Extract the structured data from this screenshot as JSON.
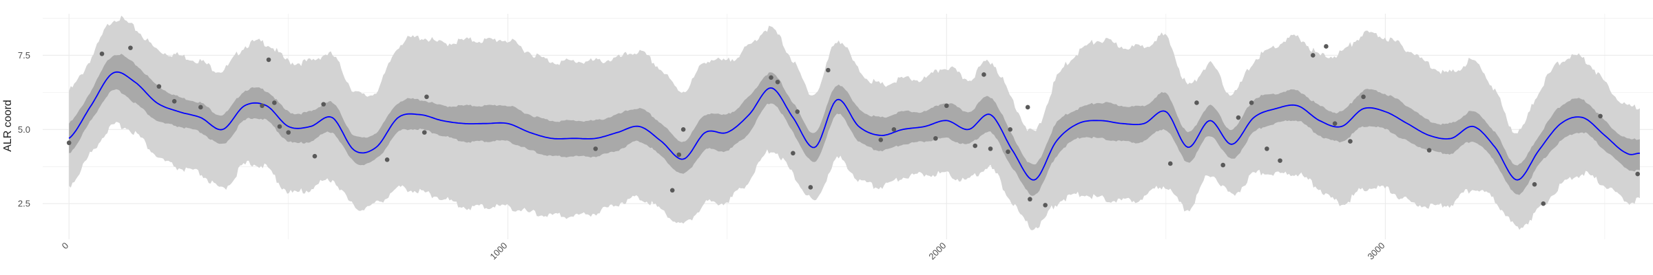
{
  "chart_data": {
    "type": "line",
    "title": "",
    "xlabel": "",
    "ylabel": "ALR coord",
    "xlim": [
      -60,
      3610
    ],
    "ylim": [
      1.3,
      8.9
    ],
    "x_ticks": [
      0,
      1000,
      2000,
      3000
    ],
    "x_tick_labels": [
      "0",
      "1000",
      "2000",
      "3000"
    ],
    "y_ticks": [
      2.5,
      5.0,
      7.5
    ],
    "y_tick_labels": [
      "2.5",
      "5.0",
      "7.5"
    ],
    "grid": true,
    "legend": "none",
    "colors": {
      "mean_line": "#0000ff",
      "outer_band": "#d3d3d3",
      "inner_band": "#a9a9a9",
      "points": "#595959",
      "grid": "#ebebeb"
    },
    "mean": {
      "x": [
        0,
        50,
        100,
        150,
        200,
        250,
        300,
        350,
        400,
        450,
        500,
        550,
        600,
        650,
        700,
        750,
        800,
        850,
        900,
        950,
        1000,
        1050,
        1100,
        1150,
        1200,
        1250,
        1300,
        1350,
        1400,
        1450,
        1500,
        1550,
        1600,
        1650,
        1700,
        1750,
        1800,
        1850,
        1900,
        1950,
        2000,
        2050,
        2100,
        2150,
        2200,
        2250,
        2300,
        2350,
        2400,
        2450,
        2500,
        2550,
        2600,
        2650,
        2700,
        2750,
        2800,
        2850,
        2900,
        2950,
        3000,
        3050,
        3100,
        3150,
        3200,
        3250,
        3300,
        3350,
        3400,
        3450,
        3500,
        3550,
        3580
      ],
      "y": [
        4.7,
        5.8,
        6.9,
        6.6,
        5.9,
        5.6,
        5.4,
        5.0,
        5.8,
        5.8,
        5.1,
        5.1,
        5.4,
        4.3,
        4.4,
        5.4,
        5.5,
        5.3,
        5.2,
        5.2,
        5.2,
        4.9,
        4.7,
        4.7,
        4.7,
        4.9,
        5.1,
        4.6,
        4.0,
        4.9,
        4.9,
        5.5,
        6.4,
        5.4,
        4.4,
        6.0,
        5.1,
        4.8,
        5.0,
        5.1,
        5.3,
        5.0,
        5.5,
        4.3,
        3.3,
        4.6,
        5.2,
        5.3,
        5.2,
        5.2,
        5.6,
        4.4,
        5.3,
        4.5,
        5.4,
        5.7,
        5.8,
        5.3,
        5.1,
        5.7,
        5.6,
        5.2,
        4.8,
        4.7,
        5.1,
        4.4,
        3.3,
        4.3,
        5.2,
        5.4,
        4.8,
        4.2,
        4.2
      ]
    },
    "inner_band": {
      "lower": [
        4.2,
        5.3,
        6.3,
        5.9,
        5.3,
        5.1,
        4.9,
        4.5,
        5.3,
        5.3,
        4.6,
        4.6,
        4.9,
        3.9,
        4.0,
        4.9,
        5.0,
        4.8,
        4.6,
        4.6,
        4.6,
        4.3,
        4.1,
        4.1,
        4.1,
        4.3,
        4.6,
        4.1,
        3.5,
        4.3,
        4.3,
        4.9,
        5.9,
        4.9,
        3.9,
        5.5,
        4.6,
        4.3,
        4.5,
        4.6,
        4.7,
        4.5,
        4.9,
        3.7,
        2.8,
        4.1,
        4.7,
        4.7,
        4.6,
        4.6,
        5.0,
        3.9,
        4.8,
        4.0,
        4.9,
        5.2,
        5.3,
        4.8,
        4.6,
        5.1,
        5.0,
        4.6,
        4.3,
        4.2,
        4.6,
        3.9,
        2.8,
        3.8,
        4.6,
        4.9,
        4.3,
        3.7,
        3.6
      ],
      "upper": [
        5.2,
        6.3,
        7.5,
        7.2,
        6.5,
        6.1,
        5.9,
        5.5,
        6.3,
        6.3,
        5.6,
        5.6,
        5.9,
        4.8,
        4.9,
        5.9,
        6.0,
        5.8,
        5.8,
        5.8,
        5.8,
        5.5,
        5.3,
        5.3,
        5.3,
        5.5,
        5.7,
        5.2,
        4.6,
        5.5,
        5.5,
        6.1,
        6.9,
        5.9,
        4.9,
        6.5,
        5.7,
        5.4,
        5.6,
        5.6,
        5.9,
        5.6,
        6.1,
        4.8,
        3.8,
        5.2,
        5.7,
        5.9,
        5.8,
        5.8,
        6.2,
        4.9,
        5.8,
        5.0,
        6.0,
        6.2,
        6.3,
        5.8,
        5.6,
        6.3,
        6.2,
        5.8,
        5.3,
        5.2,
        5.6,
        4.9,
        3.8,
        4.8,
        5.8,
        6.0,
        5.3,
        4.7,
        4.7
      ]
    },
    "outer_band": {
      "lower": [
        3.1,
        4.2,
        5.1,
        4.9,
        4.1,
        3.7,
        3.5,
        3.0,
        3.8,
        3.7,
        2.9,
        3.0,
        3.3,
        2.4,
        2.5,
        3.0,
        2.9,
        2.7,
        2.4,
        2.4,
        2.4,
        2.2,
        2.1,
        2.1,
        2.2,
        2.5,
        2.7,
        2.3,
        1.8,
        2.5,
        2.6,
        3.3,
        4.3,
        3.5,
        2.6,
        4.0,
        3.3,
        3.1,
        3.4,
        3.5,
        3.5,
        3.3,
        3.7,
        2.5,
        1.7,
        2.5,
        2.8,
        2.7,
        2.6,
        2.7,
        3.1,
        2.3,
        3.5,
        2.8,
        3.5,
        3.5,
        3.5,
        3.0,
        2.5,
        3.0,
        3.0,
        2.6,
        2.4,
        2.5,
        3.0,
        2.6,
        1.7,
        2.3,
        3.1,
        3.5,
        3.1,
        2.6,
        2.6
      ],
      "upper": [
        6.3,
        7.4,
        8.7,
        8.4,
        7.7,
        7.5,
        7.3,
        7.0,
        7.8,
        7.9,
        7.3,
        7.3,
        7.5,
        6.3,
        6.3,
        7.8,
        8.1,
        7.9,
        8.0,
        8.0,
        8.0,
        7.6,
        7.3,
        7.3,
        7.3,
        7.4,
        7.6,
        7.0,
        6.3,
        7.3,
        7.3,
        7.8,
        8.4,
        7.3,
        6.2,
        8.0,
        7.0,
        6.5,
        6.7,
        6.7,
        7.1,
        6.7,
        7.3,
        6.0,
        4.9,
        6.7,
        7.6,
        8.0,
        7.8,
        7.8,
        8.1,
        6.5,
        7.2,
        6.2,
        7.3,
        7.8,
        8.1,
        7.5,
        7.6,
        8.2,
        8.1,
        7.7,
        7.2,
        6.9,
        7.3,
        6.3,
        4.9,
        6.3,
        7.3,
        7.4,
        6.6,
        5.8,
        5.8
      ]
    },
    "points": {
      "x": [
        0,
        75,
        140,
        205,
        240,
        300,
        440,
        455,
        468,
        480,
        500,
        560,
        580,
        725,
        810,
        815,
        1200,
        1375,
        1390,
        1400,
        1600,
        1615,
        1650,
        1660,
        1690,
        1730,
        1850,
        1880,
        1975,
        2000,
        2065,
        2085,
        2100,
        2140,
        2145,
        2185,
        2190,
        2225,
        2510,
        2570,
        2630,
        2665,
        2695,
        2730,
        2760,
        2835,
        2865,
        2885,
        2920,
        2950,
        3100,
        3340,
        3360,
        3490,
        3575
      ],
      "y": [
        4.55,
        7.55,
        7.75,
        6.45,
        5.95,
        5.75,
        5.8,
        7.35,
        5.9,
        5.1,
        4.9,
        4.1,
        5.85,
        3.98,
        4.9,
        6.1,
        4.35,
        2.95,
        4.15,
        5.0,
        6.75,
        6.6,
        4.2,
        5.6,
        3.05,
        7.0,
        4.65,
        5.0,
        4.7,
        5.8,
        4.45,
        6.85,
        4.35,
        4.25,
        5.0,
        5.75,
        2.65,
        2.45,
        3.85,
        5.9,
        3.8,
        5.4,
        5.9,
        4.35,
        3.95,
        7.5,
        7.8,
        5.2,
        4.6,
        6.1,
        4.3,
        3.15,
        2.5,
        5.45,
        3.5
      ]
    }
  }
}
